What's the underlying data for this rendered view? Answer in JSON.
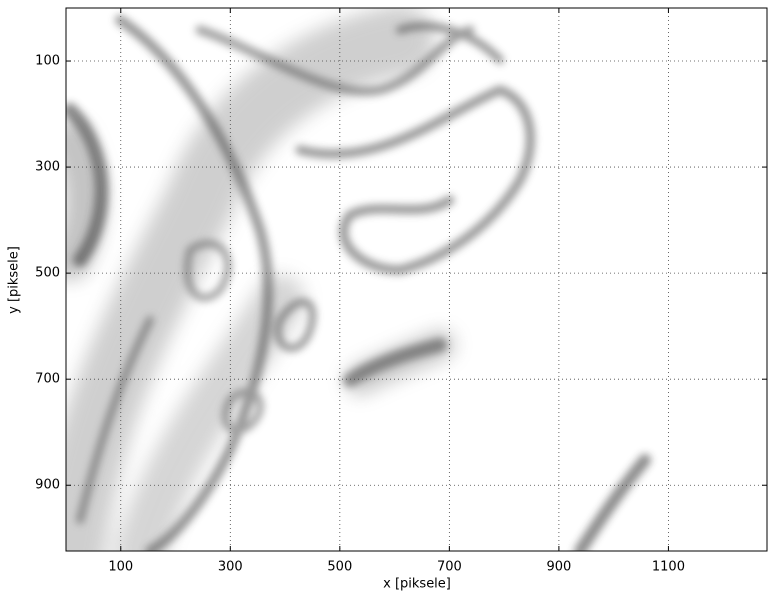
{
  "chart_data": {
    "type": "image",
    "xlabel": "x [piksele]",
    "ylabel": "y [piksele]",
    "xlim": [
      0,
      1280
    ],
    "ylim": [
      1024,
      0
    ],
    "xticks": [
      100,
      300,
      500,
      700,
      900,
      1100
    ],
    "yticks": [
      100,
      300,
      500,
      700,
      900
    ],
    "grid": true
  }
}
